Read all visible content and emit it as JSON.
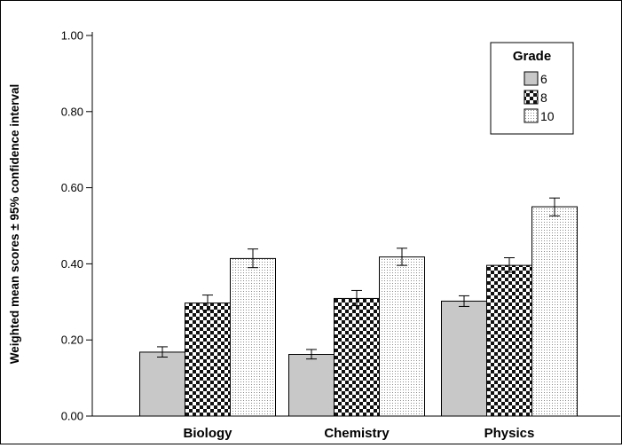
{
  "chart_data": {
    "type": "bar",
    "title": "",
    "xlabel": "",
    "ylabel": "Weighted mean scores ± 95% confidence interval",
    "ylim": [
      0,
      1.0
    ],
    "yticks": [
      "0.00",
      "0.20",
      "0.40",
      "0.60",
      "0.80",
      "1.00"
    ],
    "grid": false,
    "legend": {
      "title": "Grade",
      "placement": "top-right"
    },
    "categories": [
      "Biology",
      "Chemistry",
      "Physics"
    ],
    "series": [
      {
        "name": "6",
        "values": [
          0.168,
          0.162,
          0.302
        ],
        "ci_low": [
          0.155,
          0.15,
          0.288
        ],
        "ci_high": [
          0.182,
          0.175,
          0.316
        ],
        "pattern": "solid-gray"
      },
      {
        "name": "8",
        "values": [
          0.297,
          0.309,
          0.396
        ],
        "ci_low": [
          0.278,
          0.29,
          0.378
        ],
        "ci_high": [
          0.318,
          0.33,
          0.416
        ],
        "pattern": "checker"
      },
      {
        "name": "10",
        "values": [
          0.414,
          0.418,
          0.55
        ],
        "ci_low": [
          0.39,
          0.396,
          0.526
        ],
        "ci_high": [
          0.439,
          0.441,
          0.573
        ],
        "pattern": "dotted"
      }
    ]
  }
}
